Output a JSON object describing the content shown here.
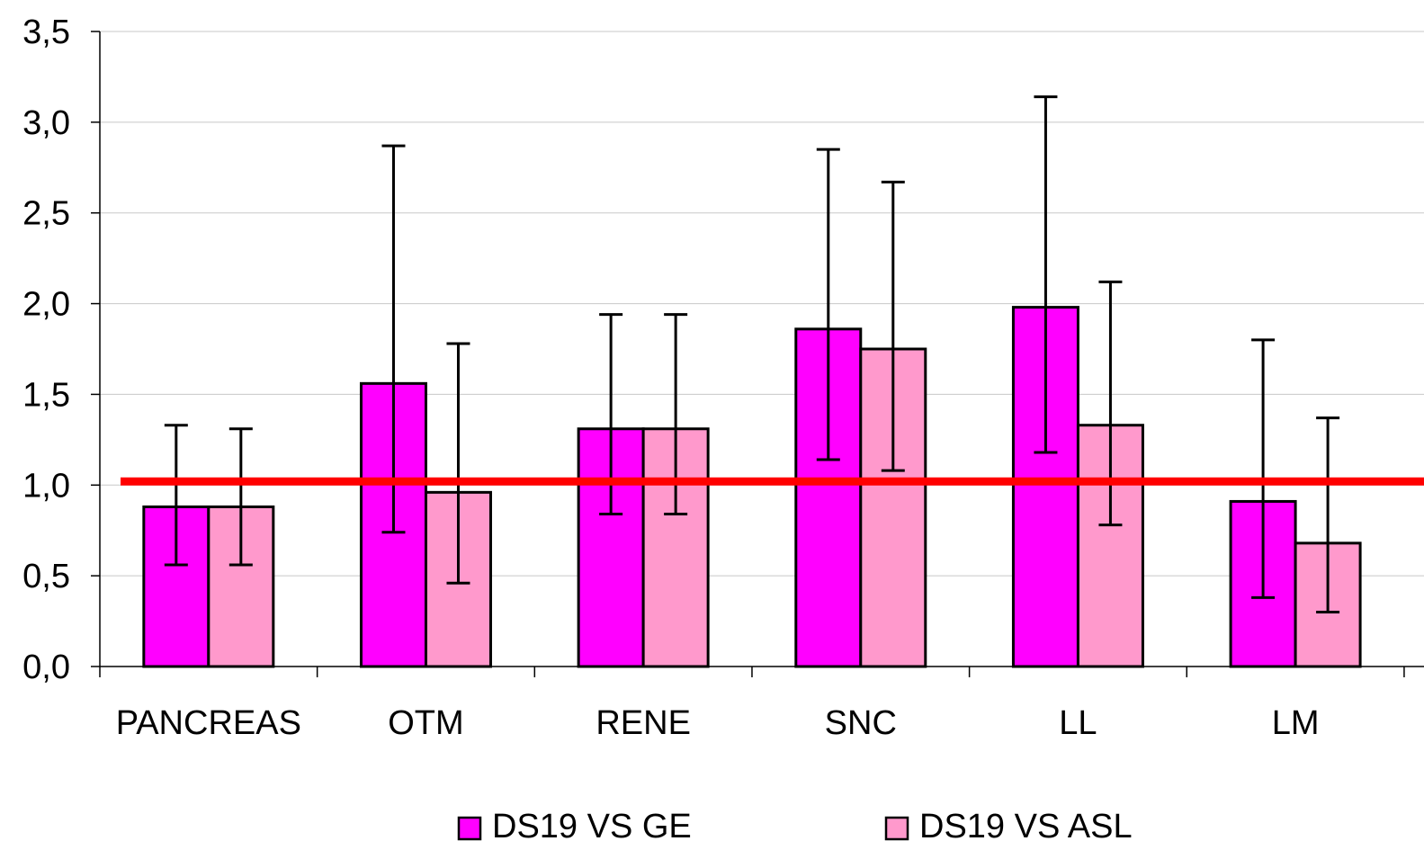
{
  "chart_data": {
    "type": "bar",
    "title": "",
    "xlabel": "",
    "ylabel": "",
    "categories": [
      "PANCREAS",
      "OTM",
      "RENE",
      "SNC",
      "LL",
      "LM"
    ],
    "series": [
      {
        "name": "DS19 VS GE",
        "color": "#ff00ff",
        "values": [
          0.88,
          1.56,
          1.31,
          1.86,
          1.98,
          0.91
        ],
        "error_low": [
          0.56,
          0.74,
          0.84,
          1.14,
          1.18,
          0.38
        ],
        "error_high": [
          1.33,
          2.87,
          1.94,
          2.85,
          3.14,
          1.8
        ]
      },
      {
        "name": "DS19 VS ASL",
        "color": "#ff99cc",
        "values": [
          0.88,
          0.96,
          1.31,
          1.75,
          1.33,
          0.68
        ],
        "error_low": [
          0.56,
          0.46,
          0.84,
          1.08,
          0.78,
          0.3
        ],
        "error_high": [
          1.31,
          1.78,
          1.94,
          2.67,
          2.12,
          1.37
        ]
      }
    ],
    "reference_line": {
      "value": 1.02,
      "color": "#ff0000"
    },
    "ylim": [
      0,
      3.5
    ],
    "yticks": [
      "0,0",
      "0,5",
      "1,0",
      "1,5",
      "2,0",
      "2,5",
      "3,0",
      "3,5"
    ],
    "ytick_values": [
      0,
      0.5,
      1.0,
      1.5,
      2.0,
      2.5,
      3.0,
      3.5
    ],
    "grid": true,
    "legend_position": "bottom"
  }
}
